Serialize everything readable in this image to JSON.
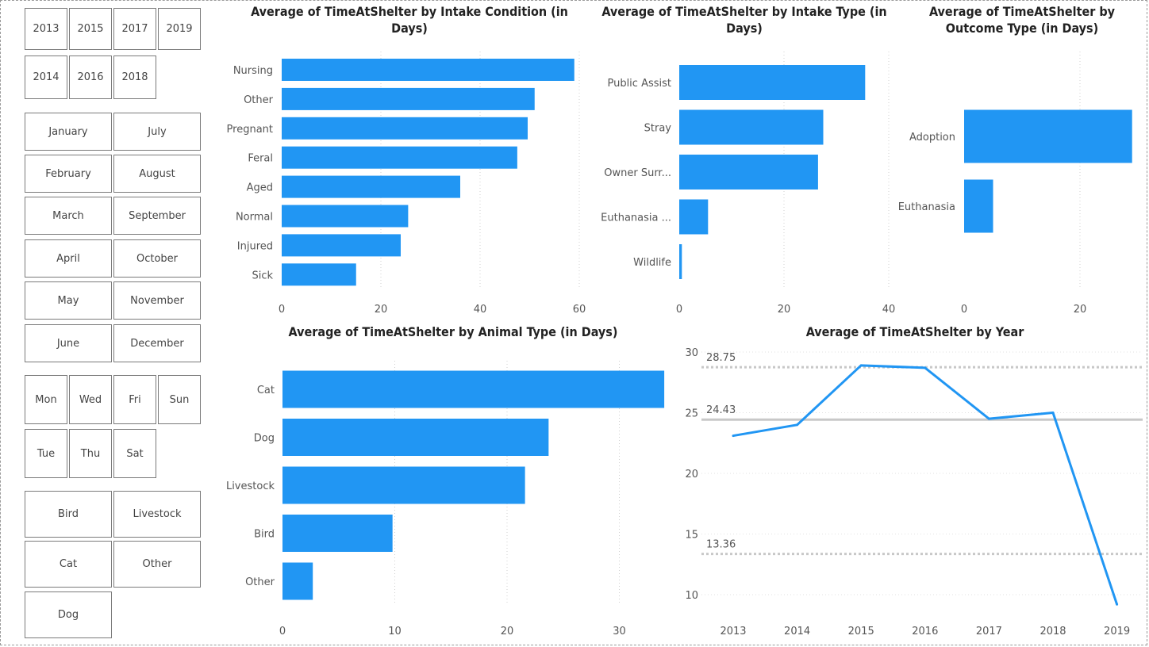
{
  "slicers": {
    "years": [
      "2013",
      "2015",
      "2017",
      "2019",
      "2014",
      "2016",
      "2018"
    ],
    "months": [
      "January",
      "July",
      "February",
      "August",
      "March",
      "September",
      "April",
      "October",
      "May",
      "November",
      "June",
      "December"
    ],
    "days": [
      "Mon",
      "Wed",
      "Fri",
      "Sun",
      "Tue",
      "Thu",
      "Sat"
    ],
    "animals": [
      "Bird",
      "Livestock",
      "Cat",
      "Other",
      "Dog"
    ]
  },
  "colors": {
    "bar": "#2196f3",
    "grid": "#d0d0d0",
    "refline": "#c8c8c8",
    "text": "#555555"
  },
  "chart_data": [
    {
      "id": "intake-condition",
      "type": "bar",
      "orientation": "horizontal",
      "title": "Average of TimeAtShelter by Intake Condition (in Days)",
      "categories": [
        "Nursing",
        "Other",
        "Pregnant",
        "Feral",
        "Aged",
        "Normal",
        "Injured",
        "Sick"
      ],
      "values": [
        59,
        51,
        49.6,
        47.5,
        36,
        25.5,
        24,
        15
      ],
      "xlim": [
        0,
        60
      ],
      "xticks": [
        "0",
        "20",
        "40",
        "60"
      ],
      "grid": true
    },
    {
      "id": "intake-type",
      "type": "bar",
      "orientation": "horizontal",
      "title": "Average of TimeAtShelter by Intake Type (in Days)",
      "categories": [
        "Public Assist",
        "Stray",
        "Owner Surr...",
        "Euthanasia ...",
        "Wildlife"
      ],
      "values": [
        35.5,
        27.5,
        26.5,
        5.5,
        0.5
      ],
      "xlim": [
        0,
        40
      ],
      "xticks": [
        "0",
        "20",
        "40"
      ],
      "grid": true
    },
    {
      "id": "outcome-type",
      "type": "bar",
      "orientation": "horizontal",
      "title": "Average of TimeAtShelter by Outcome Type (in Days)",
      "categories": [
        "Adoption",
        "Euthanasia"
      ],
      "values": [
        29,
        5
      ],
      "xlim": [
        0,
        29
      ],
      "xticks": [
        "0",
        "20"
      ],
      "grid": true
    },
    {
      "id": "animal-type",
      "type": "bar",
      "orientation": "horizontal",
      "title": "Average of TimeAtShelter by Animal Type (in Days)",
      "categories": [
        "Cat",
        "Dog",
        "Livestock",
        "Bird",
        "Other"
      ],
      "values": [
        34,
        23.7,
        21.6,
        9.8,
        2.7
      ],
      "xlim": [
        0,
        34
      ],
      "xticks": [
        "0",
        "10",
        "20",
        "30"
      ],
      "grid": true
    },
    {
      "id": "by-year",
      "type": "line",
      "title": "Average of TimeAtShelter by Year",
      "x": [
        "2013",
        "2014",
        "2015",
        "2016",
        "2017",
        "2018",
        "2019"
      ],
      "y": [
        23.1,
        24,
        28.9,
        28.7,
        24.5,
        25,
        9.2
      ],
      "ylim": [
        8.5,
        30
      ],
      "yticks": [
        "10",
        "15",
        "20",
        "25",
        "30"
      ],
      "reference_lines": [
        {
          "value": 28.75,
          "label": "28.75",
          "style": "dotted"
        },
        {
          "value": 24.43,
          "label": "24.43",
          "style": "solid"
        },
        {
          "value": 13.36,
          "label": "13.36",
          "style": "dotted"
        }
      ],
      "grid": true
    }
  ]
}
